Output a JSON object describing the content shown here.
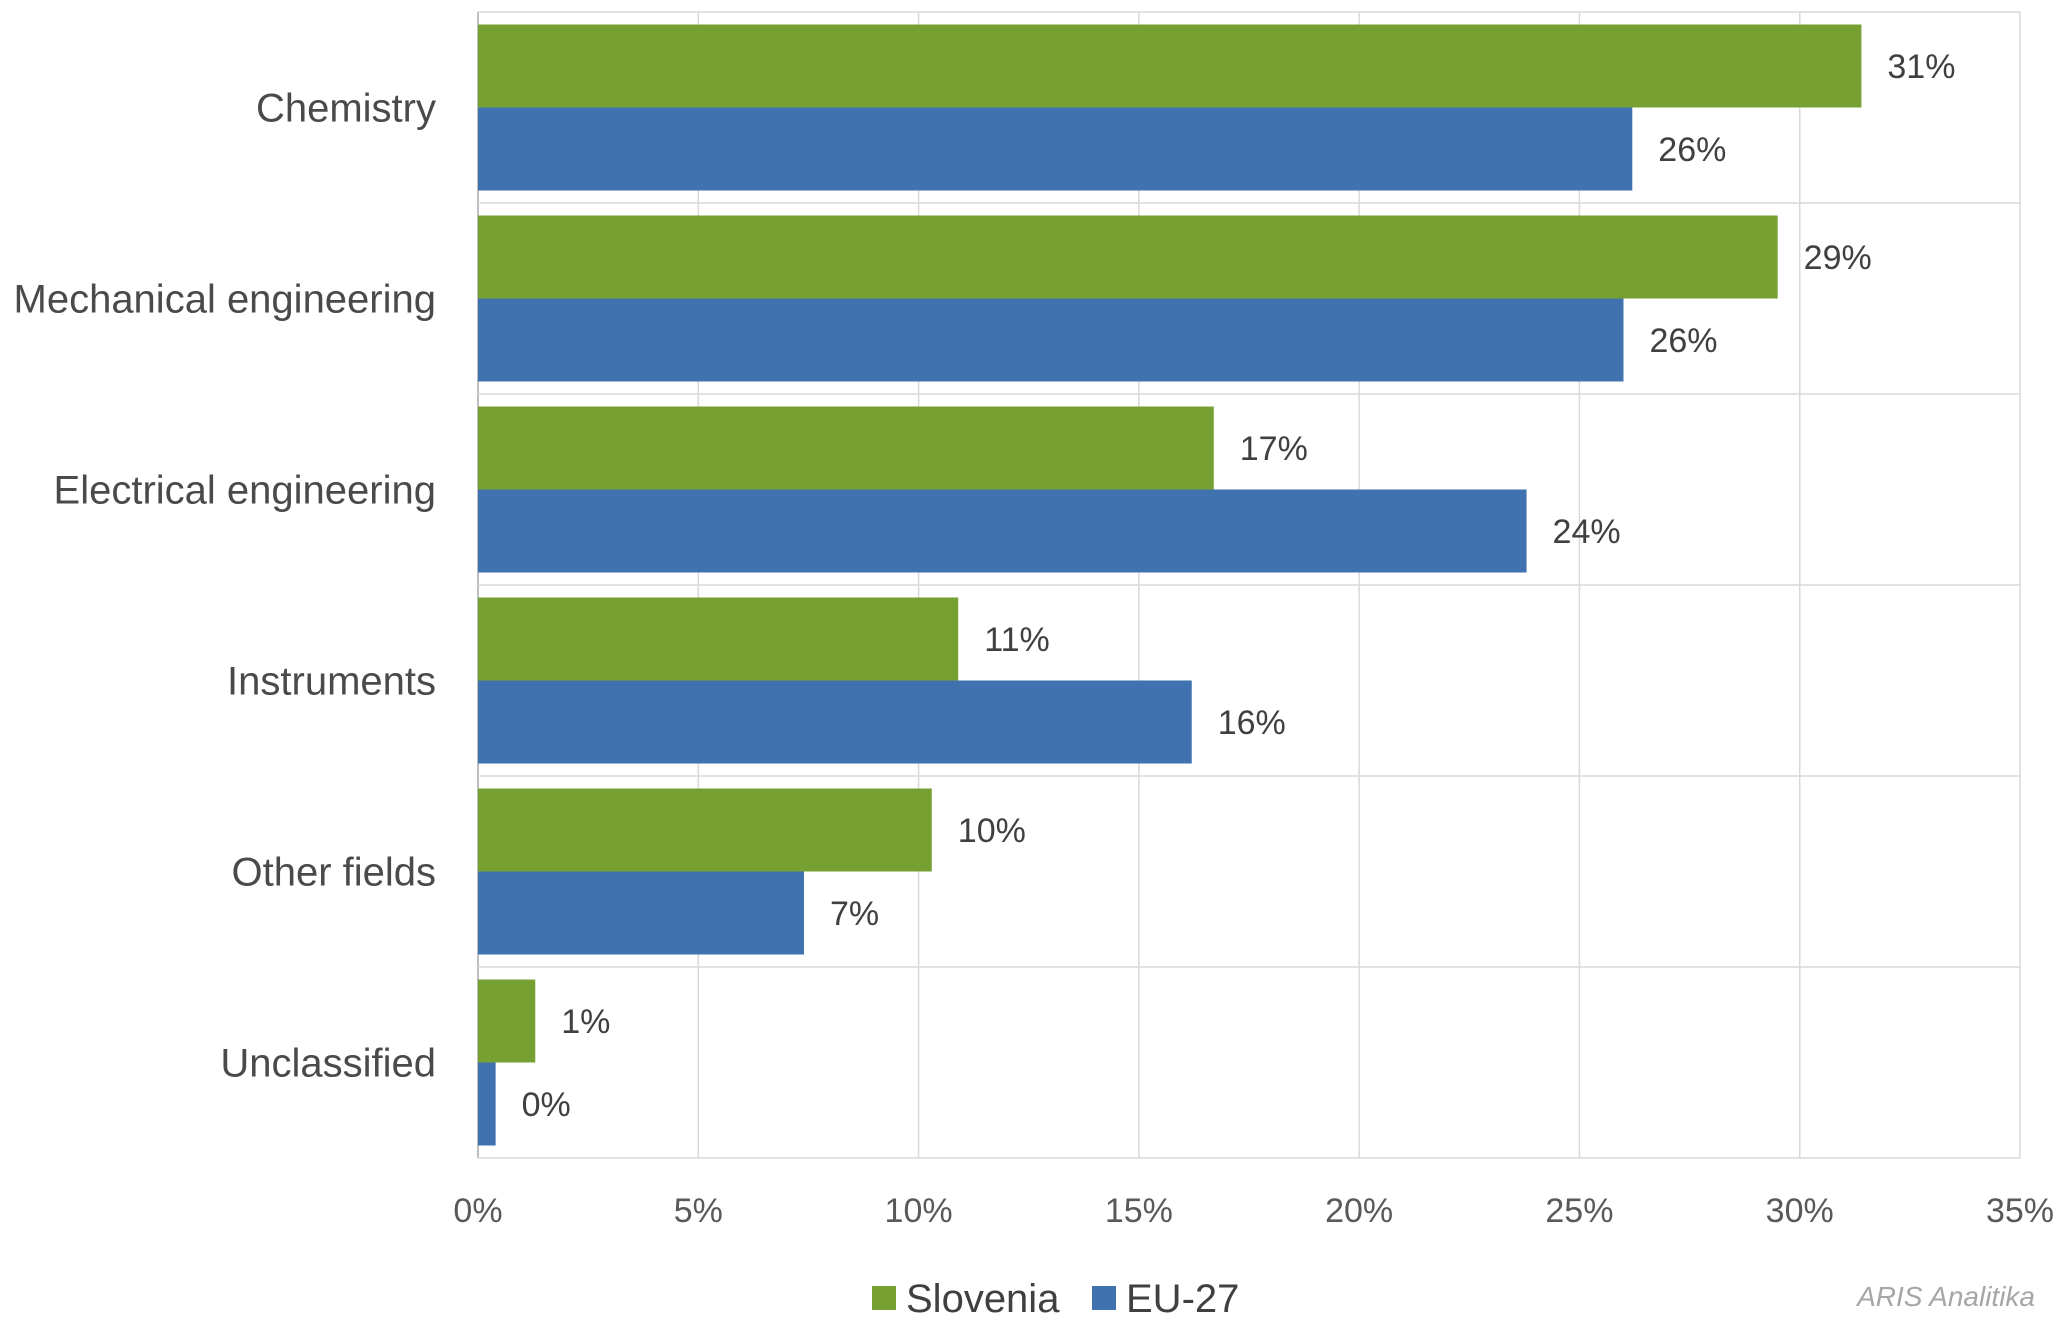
{
  "chart_data": {
    "type": "bar",
    "orientation": "horizontal",
    "categories": [
      "Chemistry",
      "Mechanical engineering",
      "Electrical engineering",
      "Instruments",
      "Other fields",
      "Unclassified"
    ],
    "series": [
      {
        "name": "Slovenia",
        "color": "#77a032",
        "values": [
          31.4,
          29.5,
          16.7,
          10.9,
          10.3,
          1.3
        ],
        "labels": [
          "31%",
          "29%",
          "17%",
          "11%",
          "10%",
          "1%"
        ]
      },
      {
        "name": "EU-27",
        "color": "#4072b0",
        "values": [
          26.2,
          26.0,
          23.8,
          16.2,
          7.4,
          0.4
        ],
        "labels": [
          "26%",
          "26%",
          "24%",
          "16%",
          "7%",
          "0%"
        ]
      }
    ],
    "xlim": [
      0,
      35
    ],
    "xticks": [
      0,
      5,
      10,
      15,
      20,
      25,
      30,
      35
    ],
    "xtick_labels": [
      "0%",
      "5%",
      "10%",
      "15%",
      "20%",
      "25%",
      "30%",
      "35%"
    ],
    "grid": true,
    "legend_position": "bottom"
  },
  "credit": "ARIS Analitika"
}
